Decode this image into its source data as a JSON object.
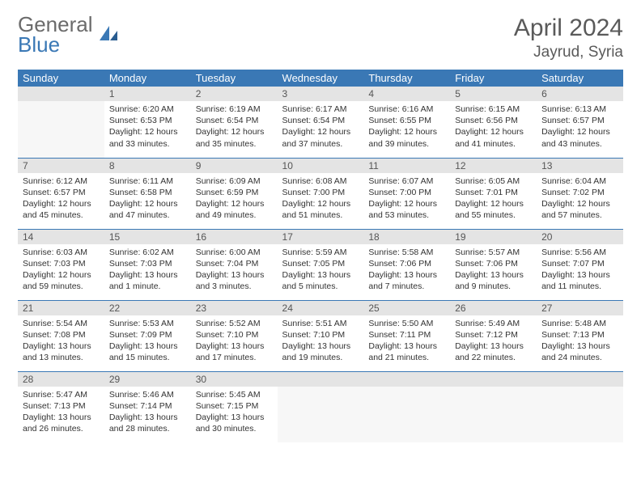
{
  "brand": {
    "line1": "General",
    "line2": "Blue",
    "accent": "#3a78b5",
    "grey": "#6b6b6b"
  },
  "title": {
    "month": "April 2024",
    "location": "Jayrud, Syria"
  },
  "style": {
    "header_bg": "#3a78b5",
    "header_fg": "#ffffff",
    "daynum_bg": "#e4e4e4",
    "row_border": "#3a78b5",
    "body_fontsize": 10.5,
    "header_fontsize": 13
  },
  "weekdays": [
    "Sunday",
    "Monday",
    "Tuesday",
    "Wednesday",
    "Thursday",
    "Friday",
    "Saturday"
  ],
  "weeks": [
    [
      null,
      {
        "n": "1",
        "sr": "Sunrise: 6:20 AM",
        "ss": "Sunset: 6:53 PM",
        "d1": "Daylight: 12 hours",
        "d2": "and 33 minutes."
      },
      {
        "n": "2",
        "sr": "Sunrise: 6:19 AM",
        "ss": "Sunset: 6:54 PM",
        "d1": "Daylight: 12 hours",
        "d2": "and 35 minutes."
      },
      {
        "n": "3",
        "sr": "Sunrise: 6:17 AM",
        "ss": "Sunset: 6:54 PM",
        "d1": "Daylight: 12 hours",
        "d2": "and 37 minutes."
      },
      {
        "n": "4",
        "sr": "Sunrise: 6:16 AM",
        "ss": "Sunset: 6:55 PM",
        "d1": "Daylight: 12 hours",
        "d2": "and 39 minutes."
      },
      {
        "n": "5",
        "sr": "Sunrise: 6:15 AM",
        "ss": "Sunset: 6:56 PM",
        "d1": "Daylight: 12 hours",
        "d2": "and 41 minutes."
      },
      {
        "n": "6",
        "sr": "Sunrise: 6:13 AM",
        "ss": "Sunset: 6:57 PM",
        "d1": "Daylight: 12 hours",
        "d2": "and 43 minutes."
      }
    ],
    [
      {
        "n": "7",
        "sr": "Sunrise: 6:12 AM",
        "ss": "Sunset: 6:57 PM",
        "d1": "Daylight: 12 hours",
        "d2": "and 45 minutes."
      },
      {
        "n": "8",
        "sr": "Sunrise: 6:11 AM",
        "ss": "Sunset: 6:58 PM",
        "d1": "Daylight: 12 hours",
        "d2": "and 47 minutes."
      },
      {
        "n": "9",
        "sr": "Sunrise: 6:09 AM",
        "ss": "Sunset: 6:59 PM",
        "d1": "Daylight: 12 hours",
        "d2": "and 49 minutes."
      },
      {
        "n": "10",
        "sr": "Sunrise: 6:08 AM",
        "ss": "Sunset: 7:00 PM",
        "d1": "Daylight: 12 hours",
        "d2": "and 51 minutes."
      },
      {
        "n": "11",
        "sr": "Sunrise: 6:07 AM",
        "ss": "Sunset: 7:00 PM",
        "d1": "Daylight: 12 hours",
        "d2": "and 53 minutes."
      },
      {
        "n": "12",
        "sr": "Sunrise: 6:05 AM",
        "ss": "Sunset: 7:01 PM",
        "d1": "Daylight: 12 hours",
        "d2": "and 55 minutes."
      },
      {
        "n": "13",
        "sr": "Sunrise: 6:04 AM",
        "ss": "Sunset: 7:02 PM",
        "d1": "Daylight: 12 hours",
        "d2": "and 57 minutes."
      }
    ],
    [
      {
        "n": "14",
        "sr": "Sunrise: 6:03 AM",
        "ss": "Sunset: 7:03 PM",
        "d1": "Daylight: 12 hours",
        "d2": "and 59 minutes."
      },
      {
        "n": "15",
        "sr": "Sunrise: 6:02 AM",
        "ss": "Sunset: 7:03 PM",
        "d1": "Daylight: 13 hours",
        "d2": "and 1 minute."
      },
      {
        "n": "16",
        "sr": "Sunrise: 6:00 AM",
        "ss": "Sunset: 7:04 PM",
        "d1": "Daylight: 13 hours",
        "d2": "and 3 minutes."
      },
      {
        "n": "17",
        "sr": "Sunrise: 5:59 AM",
        "ss": "Sunset: 7:05 PM",
        "d1": "Daylight: 13 hours",
        "d2": "and 5 minutes."
      },
      {
        "n": "18",
        "sr": "Sunrise: 5:58 AM",
        "ss": "Sunset: 7:06 PM",
        "d1": "Daylight: 13 hours",
        "d2": "and 7 minutes."
      },
      {
        "n": "19",
        "sr": "Sunrise: 5:57 AM",
        "ss": "Sunset: 7:06 PM",
        "d1": "Daylight: 13 hours",
        "d2": "and 9 minutes."
      },
      {
        "n": "20",
        "sr": "Sunrise: 5:56 AM",
        "ss": "Sunset: 7:07 PM",
        "d1": "Daylight: 13 hours",
        "d2": "and 11 minutes."
      }
    ],
    [
      {
        "n": "21",
        "sr": "Sunrise: 5:54 AM",
        "ss": "Sunset: 7:08 PM",
        "d1": "Daylight: 13 hours",
        "d2": "and 13 minutes."
      },
      {
        "n": "22",
        "sr": "Sunrise: 5:53 AM",
        "ss": "Sunset: 7:09 PM",
        "d1": "Daylight: 13 hours",
        "d2": "and 15 minutes."
      },
      {
        "n": "23",
        "sr": "Sunrise: 5:52 AM",
        "ss": "Sunset: 7:10 PM",
        "d1": "Daylight: 13 hours",
        "d2": "and 17 minutes."
      },
      {
        "n": "24",
        "sr": "Sunrise: 5:51 AM",
        "ss": "Sunset: 7:10 PM",
        "d1": "Daylight: 13 hours",
        "d2": "and 19 minutes."
      },
      {
        "n": "25",
        "sr": "Sunrise: 5:50 AM",
        "ss": "Sunset: 7:11 PM",
        "d1": "Daylight: 13 hours",
        "d2": "and 21 minutes."
      },
      {
        "n": "26",
        "sr": "Sunrise: 5:49 AM",
        "ss": "Sunset: 7:12 PM",
        "d1": "Daylight: 13 hours",
        "d2": "and 22 minutes."
      },
      {
        "n": "27",
        "sr": "Sunrise: 5:48 AM",
        "ss": "Sunset: 7:13 PM",
        "d1": "Daylight: 13 hours",
        "d2": "and 24 minutes."
      }
    ],
    [
      {
        "n": "28",
        "sr": "Sunrise: 5:47 AM",
        "ss": "Sunset: 7:13 PM",
        "d1": "Daylight: 13 hours",
        "d2": "and 26 minutes."
      },
      {
        "n": "29",
        "sr": "Sunrise: 5:46 AM",
        "ss": "Sunset: 7:14 PM",
        "d1": "Daylight: 13 hours",
        "d2": "and 28 minutes."
      },
      {
        "n": "30",
        "sr": "Sunrise: 5:45 AM",
        "ss": "Sunset: 7:15 PM",
        "d1": "Daylight: 13 hours",
        "d2": "and 30 minutes."
      },
      null,
      null,
      null,
      null
    ]
  ]
}
